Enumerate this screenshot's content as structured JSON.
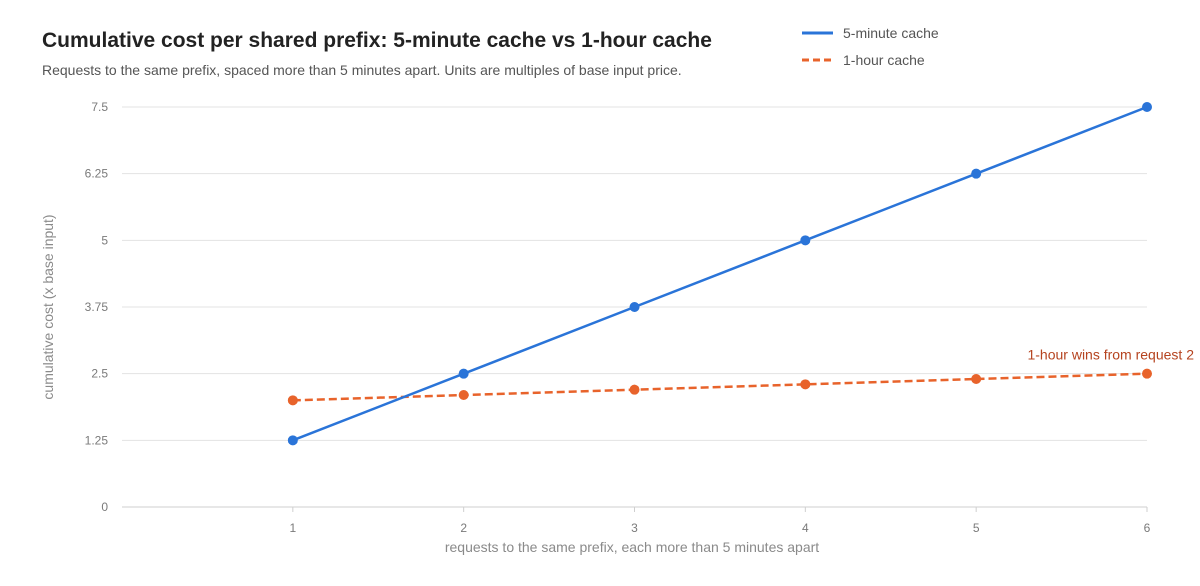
{
  "chart_data": {
    "type": "line",
    "title": "Cumulative cost per shared prefix: 5-minute cache vs 1-hour cache",
    "subtitle": "Requests to the same prefix, spaced more than 5 minutes apart. Units are multiples of base input price.",
    "xlabel": "requests to the same prefix, each more than 5 minutes apart",
    "ylabel": "cumulative cost (x base input)",
    "x": [
      1,
      2,
      3,
      4,
      5,
      6
    ],
    "x_tick_labels": [
      "1",
      "2",
      "3",
      "4",
      "5",
      "6"
    ],
    "xlim": [
      0,
      6
    ],
    "ylim": [
      0,
      7.5
    ],
    "y_ticks": [
      0,
      1.25,
      2.5,
      3.75,
      5,
      6.25,
      7.5
    ],
    "y_tick_labels": [
      "0",
      "1.25",
      "2.5",
      "3.75",
      "5",
      "6.25",
      "7.5"
    ],
    "grid": true,
    "legend_position": "top-right",
    "series": [
      {
        "name": "5-minute cache",
        "color": "#2a74d8",
        "dashed": false,
        "values": [
          1.25,
          2.5,
          3.75,
          5,
          6.25,
          7.5
        ]
      },
      {
        "name": "1-hour cache",
        "color": "#e8632b",
        "dashed": true,
        "values": [
          2,
          2.1,
          2.2,
          2.3,
          2.4,
          2.5
        ]
      }
    ],
    "annotations": [
      {
        "text": "1-hour wins from request 2",
        "series": 1,
        "x": 6,
        "y": 2.5,
        "color": "#b5431f"
      }
    ]
  }
}
